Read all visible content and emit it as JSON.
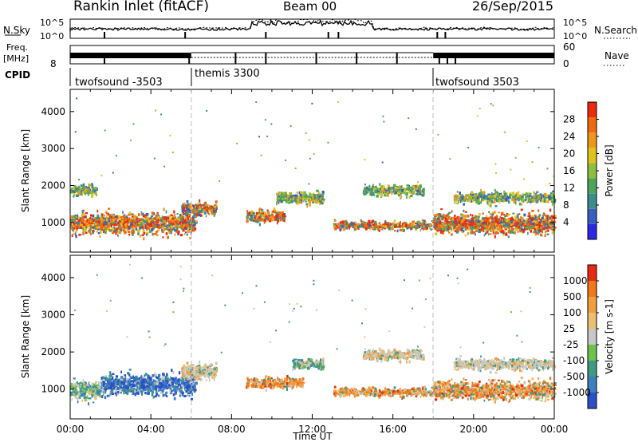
{
  "header": {
    "station": "Rankin Inlet (fitACF)",
    "beam": "Beam 00",
    "date": "26/Sep/2015"
  },
  "top_strip": {
    "nsky_label": "N.Sky",
    "nsearch_label": "N.Search",
    "left_ticks": [
      "10^5",
      "10^0"
    ],
    "right_ticks": [
      "10^5",
      "10^0"
    ]
  },
  "freq_strip": {
    "freq_label": "Freq.",
    "freq_unit": "[MHz]",
    "freq_tick": "8",
    "nave_label": "Nave",
    "nave_ticks": [
      "60",
      "0"
    ]
  },
  "cpid": {
    "label": "CPID",
    "segments": [
      {
        "name": "twofsound -3503",
        "start_hour": 0
      },
      {
        "name": "themis 3300",
        "start_hour": 6
      },
      {
        "name": "twofsound 3503",
        "start_hour": 18
      }
    ]
  },
  "chart_data": [
    {
      "type": "heatmap",
      "panel": "power",
      "ylabel": "Slant Range [km]",
      "xlabel": "",
      "y_ticks": [
        "4000",
        "3000",
        "2000",
        "1000"
      ],
      "y_tick_values": [
        4000,
        3000,
        2000,
        1000
      ],
      "ylim": [
        200,
        4600
      ],
      "xlim_hours": [
        0,
        24
      ],
      "colorbar": {
        "label": "Power [dB]",
        "ticks": [
          "28",
          "24",
          "20",
          "16",
          "12",
          "8",
          "4"
        ],
        "colors": [
          "#2a2ae6",
          "#3a5fc0",
          "#3c8c8c",
          "#4fa45a",
          "#8dbf3d",
          "#e0c21c",
          "#f0961a",
          "#f06a10",
          "#ee2a0e"
        ]
      },
      "scatter_bands": [
        {
          "start": 0.0,
          "end": 6.2,
          "center": 1000,
          "spread": 450,
          "palette": "strong"
        },
        {
          "start": 5.5,
          "end": 7.2,
          "center": 1400,
          "spread": 300,
          "palette": "strong"
        },
        {
          "start": 8.7,
          "end": 10.6,
          "center": 1200,
          "spread": 280,
          "palette": "strong"
        },
        {
          "start": 10.2,
          "end": 12.5,
          "center": 1700,
          "spread": 280,
          "palette": "weak"
        },
        {
          "start": 13.0,
          "end": 18.2,
          "center": 950,
          "spread": 200,
          "palette": "strong"
        },
        {
          "start": 14.5,
          "end": 17.5,
          "center": 1900,
          "spread": 250,
          "palette": "weak"
        },
        {
          "start": 18.0,
          "end": 24.0,
          "center": 1000,
          "spread": 450,
          "palette": "strong"
        },
        {
          "start": 19.0,
          "end": 24.0,
          "center": 1700,
          "spread": 250,
          "palette": "weak"
        },
        {
          "start": 0.0,
          "end": 1.3,
          "center": 1900,
          "spread": 250,
          "palette": "weak"
        }
      ]
    },
    {
      "type": "heatmap",
      "panel": "velocity",
      "ylabel": "Slant Range [km]",
      "xlabel": "Time UT",
      "y_ticks": [
        "4000",
        "3000",
        "2000",
        "1000"
      ],
      "y_tick_values": [
        4000,
        3000,
        2000,
        1000
      ],
      "ylim": [
        200,
        4600
      ],
      "xlim_hours": [
        0,
        24
      ],
      "x_ticks": [
        "00:00",
        "04:00",
        "08:00",
        "12:00",
        "16:00",
        "20:00",
        "00:00"
      ],
      "x_tick_hours": [
        0,
        4,
        8,
        12,
        16,
        20,
        24
      ],
      "colorbar": {
        "label": "Velocity [m s-1]",
        "ticks": [
          "1000",
          "500",
          "100",
          "25",
          "-25",
          "-100",
          "-500",
          "-1000"
        ],
        "colors": [
          "#2b4fc8",
          "#3a7fbf",
          "#3e9a80",
          "#6cc24a",
          "#c8c8c8",
          "#e8c070",
          "#f0a040",
          "#f07818",
          "#e82a14"
        ]
      },
      "scatter_bands": [
        {
          "start": 0.0,
          "end": 1.5,
          "center": 1000,
          "spread": 400,
          "palette": "green"
        },
        {
          "start": 1.5,
          "end": 6.2,
          "center": 1150,
          "spread": 450,
          "palette": "blue"
        },
        {
          "start": 5.5,
          "end": 7.2,
          "center": 1500,
          "spread": 350,
          "palette": "grey"
        },
        {
          "start": 8.7,
          "end": 11.5,
          "center": 1200,
          "spread": 250,
          "palette": "orange"
        },
        {
          "start": 11.0,
          "end": 12.5,
          "center": 1700,
          "spread": 250,
          "palette": "green"
        },
        {
          "start": 13.0,
          "end": 18.2,
          "center": 950,
          "spread": 200,
          "palette": "orange"
        },
        {
          "start": 14.5,
          "end": 17.5,
          "center": 1950,
          "spread": 250,
          "palette": "grey"
        },
        {
          "start": 18.0,
          "end": 24.0,
          "center": 1000,
          "spread": 400,
          "palette": "orange"
        },
        {
          "start": 19.0,
          "end": 24.0,
          "center": 1700,
          "spread": 250,
          "palette": "grey"
        }
      ]
    }
  ]
}
